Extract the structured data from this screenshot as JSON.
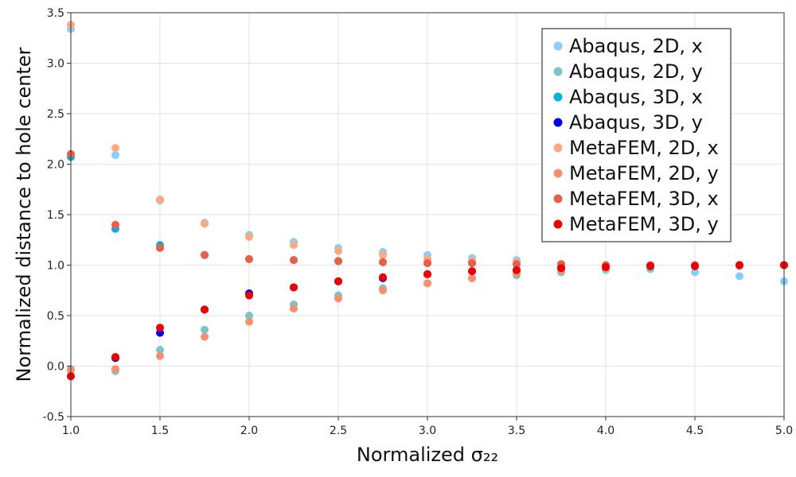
{
  "chart_data": {
    "type": "scatter",
    "title": "",
    "xlabel": "Normalized σ₂₂",
    "ylabel": "Normalized distance to hole center",
    "xlim": [
      1.0,
      5.0
    ],
    "ylim": [
      -0.5,
      3.5
    ],
    "xticks": [
      "1.0",
      "1.5",
      "2.0",
      "2.5",
      "3.0",
      "3.5",
      "4.0",
      "4.5",
      "5.0"
    ],
    "yticks": [
      "-0.5",
      "0.0",
      "0.5",
      "1.0",
      "1.5",
      "2.0",
      "2.5",
      "3.0",
      "3.5"
    ],
    "grid": true,
    "legend_position": "top-right",
    "x": [
      1.0,
      1.25,
      1.5,
      1.75,
      2.0,
      2.25,
      2.5,
      2.75,
      3.0,
      3.25,
      3.5,
      3.75,
      4.0,
      4.25,
      4.5,
      4.75,
      5.0
    ],
    "series": [
      {
        "name": "Abaqus, 2D, x",
        "color": "#87CEFA",
        "values": [
          3.34,
          2.09,
          1.64,
          1.42,
          1.3,
          1.23,
          1.17,
          1.13,
          1.1,
          1.07,
          1.05,
          1.0,
          0.95,
          0.96,
          0.93,
          0.89,
          0.84
        ]
      },
      {
        "name": "Abaqus, 2D, y",
        "color": "#78C5CC",
        "values": [
          -0.03,
          -0.05,
          0.16,
          0.36,
          0.5,
          0.61,
          0.7,
          0.77,
          0.82,
          0.87,
          0.9,
          0.93,
          0.97,
          0.97,
          0.99,
          0.99,
          1.0
        ]
      },
      {
        "name": "Abaqus, 3D, x",
        "color": "#00B0E8",
        "values": [
          2.07,
          1.36,
          1.2,
          1.1,
          1.06,
          1.05,
          1.04,
          1.03,
          1.02,
          1.02,
          1.01,
          1.01,
          1.0,
          1.0,
          1.0,
          1.0,
          1.0
        ]
      },
      {
        "name": "Abaqus, 3D, y",
        "color": "#0000EE",
        "values": [
          -0.1,
          0.08,
          0.33,
          0.56,
          0.72,
          0.78,
          0.84,
          0.87,
          0.91,
          0.94,
          0.95,
          0.97,
          0.98,
          0.99,
          0.99,
          1.0,
          1.0
        ]
      },
      {
        "name": "MetaFEM, 2D, x",
        "color": "#FFA882",
        "values": [
          3.38,
          2.16,
          1.65,
          1.41,
          1.28,
          1.2,
          1.14,
          1.1,
          1.06,
          1.04,
          1.03,
          1.01,
          1.0,
          1.0,
          1.0,
          1.0,
          1.0
        ]
      },
      {
        "name": "MetaFEM, 2D, y",
        "color": "#F89070",
        "values": [
          -0.04,
          -0.03,
          0.1,
          0.29,
          0.44,
          0.57,
          0.67,
          0.75,
          0.82,
          0.87,
          0.92,
          0.95,
          0.97,
          0.99,
          1.0,
          1.0,
          1.0
        ]
      },
      {
        "name": "MetaFEM, 3D, x",
        "color": "#E8604A",
        "values": [
          2.1,
          1.4,
          1.17,
          1.1,
          1.06,
          1.05,
          1.04,
          1.03,
          1.02,
          1.02,
          1.01,
          1.01,
          1.0,
          1.0,
          1.0,
          1.0,
          1.0
        ]
      },
      {
        "name": "MetaFEM, 3D, y",
        "color": "#EE0000",
        "values": [
          -0.1,
          0.09,
          0.38,
          0.56,
          0.7,
          0.78,
          0.84,
          0.88,
          0.91,
          0.94,
          0.95,
          0.97,
          0.98,
          0.99,
          0.99,
          1.0,
          1.0
        ]
      }
    ]
  }
}
